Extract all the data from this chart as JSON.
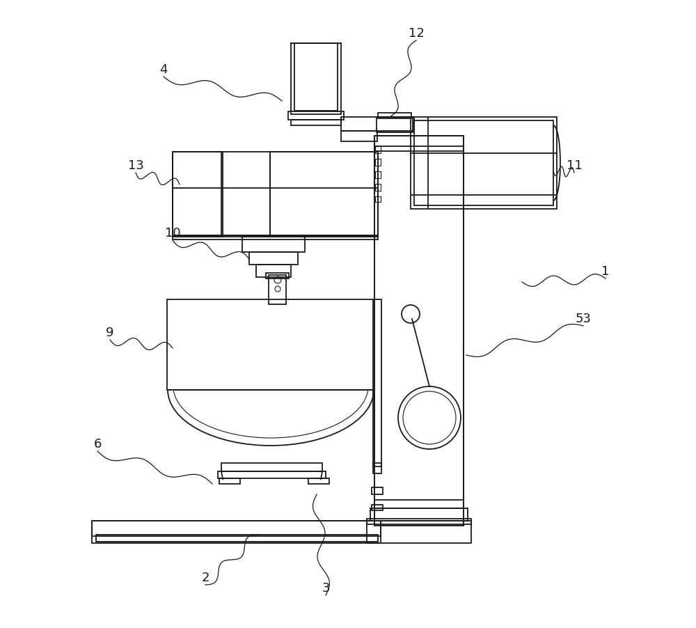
{
  "bg_color": "#ffffff",
  "line_color": "#1a1a1a",
  "lw": 1.3,
  "lw_thin": 0.8,
  "annotations": [
    [
      "1",
      870,
      390,
      750,
      405
    ],
    [
      "2",
      295,
      830,
      370,
      768
    ],
    [
      "3",
      468,
      845,
      455,
      710
    ],
    [
      "4",
      235,
      100,
      405,
      145
    ],
    [
      "6",
      140,
      638,
      305,
      695
    ],
    [
      "9",
      158,
      478,
      248,
      500
    ],
    [
      "10",
      248,
      335,
      358,
      372
    ],
    [
      "11",
      825,
      238,
      795,
      245
    ],
    [
      "12",
      598,
      48,
      560,
      168
    ],
    [
      "13",
      195,
      238,
      258,
      265
    ],
    [
      "53",
      838,
      458,
      670,
      510
    ]
  ]
}
